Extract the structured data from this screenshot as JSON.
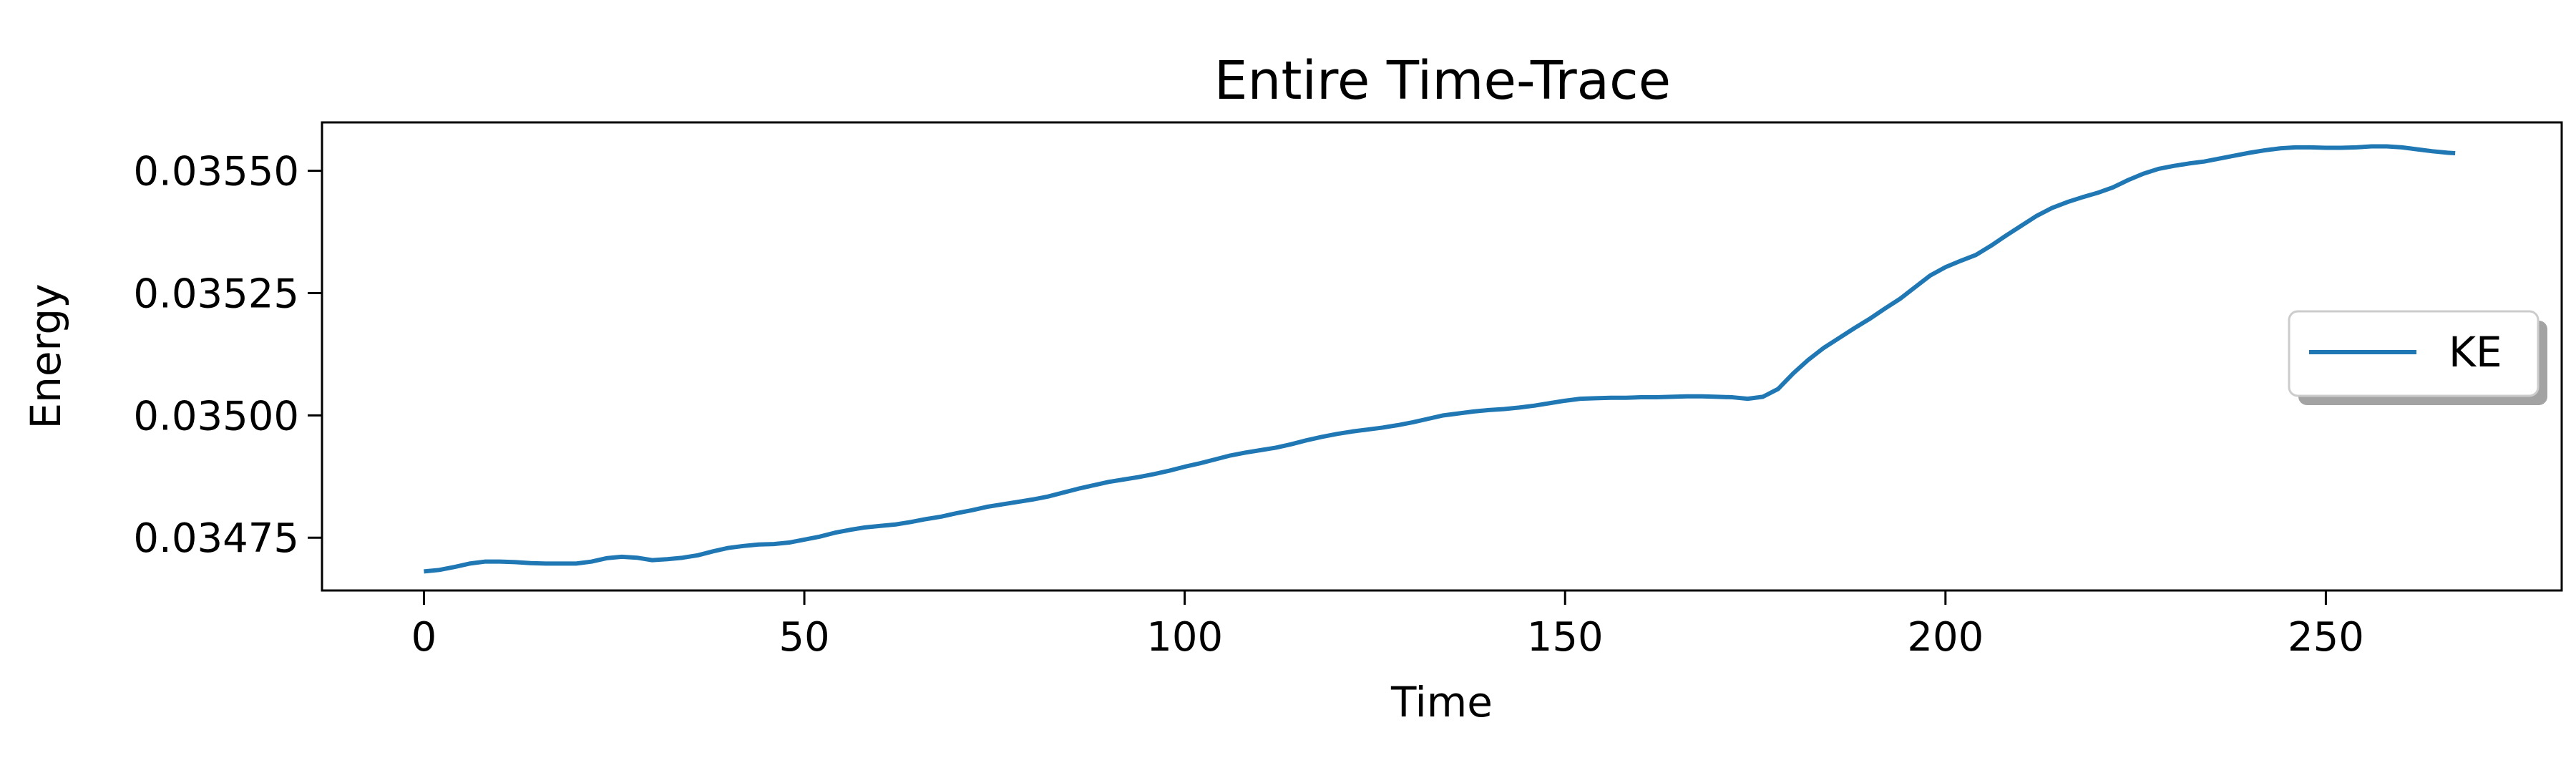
{
  "chart_data": {
    "type": "line",
    "title": "Entire Time-Trace",
    "xlabel": "Time",
    "ylabel": "Energy",
    "xlim": [
      -13.4,
      281
    ],
    "ylim": [
      0.034642,
      0.035599
    ],
    "xticks": [
      0,
      50,
      100,
      150,
      200,
      250
    ],
    "xtick_labels": [
      "0",
      "50",
      "100",
      "150",
      "200",
      "250"
    ],
    "yticks": [
      0.03475,
      0.035,
      0.03525,
      0.0355
    ],
    "ytick_labels": [
      "0.03475",
      "0.03500",
      "0.03525",
      "0.03550"
    ],
    "grid": false,
    "legend_position": "center right",
    "colors": {
      "KE": "#1f77b4"
    },
    "series": [
      {
        "name": "KE",
        "x": [
          0,
          2,
          4,
          6,
          8,
          10,
          12,
          14,
          16,
          18,
          20,
          22,
          24,
          26,
          28,
          30,
          32,
          34,
          36,
          38,
          40,
          42,
          44,
          46,
          48,
          50,
          52,
          54,
          56,
          58,
          60,
          62,
          64,
          66,
          68,
          70,
          72,
          74,
          76,
          78,
          80,
          82,
          84,
          86,
          88,
          90,
          92,
          94,
          96,
          98,
          100,
          102,
          104,
          106,
          108,
          110,
          112,
          114,
          116,
          118,
          120,
          122,
          124,
          126,
          128,
          130,
          132,
          134,
          136,
          138,
          140,
          142,
          144,
          146,
          148,
          150,
          152,
          154,
          156,
          158,
          160,
          162,
          164,
          166,
          168,
          170,
          172,
          174,
          176,
          178,
          180,
          182,
          184,
          186,
          188,
          190,
          192,
          194,
          196,
          198,
          200,
          202,
          204,
          206,
          208,
          210,
          212,
          214,
          216,
          218,
          220,
          222,
          224,
          226,
          228,
          230,
          232,
          234,
          236,
          238,
          240,
          242,
          244,
          246,
          248,
          250,
          252,
          254,
          256,
          258,
          260,
          262,
          264,
          266,
          267
        ],
        "values": [
          0.034681,
          0.034684,
          0.03469,
          0.034697,
          0.034701,
          0.034701,
          0.0347,
          0.034698,
          0.034697,
          0.034697,
          0.034697,
          0.034701,
          0.034708,
          0.034711,
          0.034709,
          0.034704,
          0.034706,
          0.034709,
          0.034714,
          0.034722,
          0.034729,
          0.034733,
          0.034736,
          0.034737,
          0.03474,
          0.034746,
          0.034752,
          0.03476,
          0.034766,
          0.034771,
          0.034774,
          0.034777,
          0.034782,
          0.034788,
          0.034793,
          0.0348,
          0.034806,
          0.034813,
          0.034818,
          0.034823,
          0.034828,
          0.034834,
          0.034842,
          0.03485,
          0.034857,
          0.034864,
          0.034869,
          0.034874,
          0.03488,
          0.034887,
          0.034895,
          0.034902,
          0.03491,
          0.034918,
          0.034924,
          0.034929,
          0.034934,
          0.034941,
          0.034949,
          0.034956,
          0.034962,
          0.034967,
          0.034971,
          0.034975,
          0.03498,
          0.034986,
          0.034993,
          0.035,
          0.035004,
          0.035008,
          0.035011,
          0.035013,
          0.035016,
          0.03502,
          0.035025,
          0.03503,
          0.035034,
          0.035035,
          0.035036,
          0.035036,
          0.035037,
          0.035037,
          0.035038,
          0.035039,
          0.035039,
          0.035038,
          0.035037,
          0.035034,
          0.035038,
          0.035054,
          0.035086,
          0.035114,
          0.035138,
          0.035158,
          0.035178,
          0.035197,
          0.035218,
          0.035238,
          0.035262,
          0.035286,
          0.035303,
          0.035316,
          0.035328,
          0.035347,
          0.035368,
          0.035388,
          0.035408,
          0.035424,
          0.035436,
          0.035446,
          0.035455,
          0.035466,
          0.035481,
          0.035494,
          0.035504,
          0.03551,
          0.035515,
          0.035519,
          0.035525,
          0.035531,
          0.035537,
          0.035542,
          0.035546,
          0.035548,
          0.035548,
          0.035547,
          0.035547,
          0.035548,
          0.03555,
          0.03555,
          0.035548,
          0.035544,
          0.03554,
          0.035537,
          0.035536
        ]
      }
    ]
  }
}
